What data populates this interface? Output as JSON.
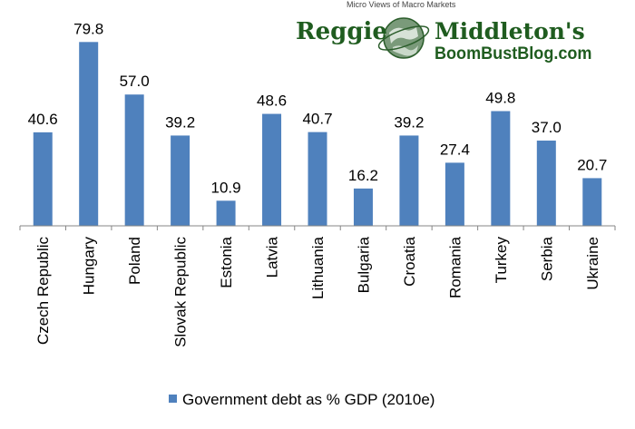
{
  "logo": {
    "brand_left": "Reggie",
    "brand_right": "Middleton's",
    "site": "BoomBustBlog.com",
    "arc_text": "Micro Views of Macro Markets",
    "color": "#1f5c1f"
  },
  "chart_data": {
    "type": "bar",
    "categories": [
      "Czech Republic",
      "Hungary",
      "Poland",
      "Slovak Republic",
      "Estonia",
      "Latvia",
      "Lithuania",
      "Bulgaria",
      "Croatia",
      "Romania",
      "Turkey",
      "Serbia",
      "Ukraine"
    ],
    "series": [
      {
        "name": "Government debt as % GDP (2010e)",
        "values": [
          40.6,
          79.8,
          57.0,
          39.2,
          10.9,
          48.6,
          40.7,
          16.2,
          39.2,
          27.4,
          49.8,
          37.0,
          20.7
        ],
        "labels": [
          "40.6",
          "79.8",
          "57.0",
          "39.2",
          "10.9",
          "48.6",
          "40.7",
          "16.2",
          "39.2",
          "27.4",
          "49.8",
          "37.0",
          "20.7"
        ],
        "color": "#4f81bd"
      }
    ],
    "ylim": [
      0,
      80
    ],
    "grid": false,
    "y_axis_visible": false,
    "data_labels": true,
    "legend_position": "bottom"
  }
}
